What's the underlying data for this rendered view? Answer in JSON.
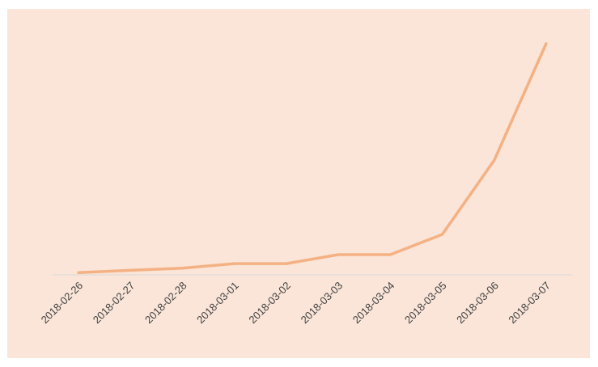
{
  "chart_data": {
    "type": "line",
    "title": "",
    "xlabel": "",
    "ylabel": "",
    "categories": [
      "2018-02-26",
      "2018-02-27",
      "2018-02-28",
      "2018-03-01",
      "2018-03-02",
      "2018-03-03",
      "2018-03-04",
      "2018-03-05",
      "2018-03-06",
      "2018-03-07"
    ],
    "series": [
      {
        "values": [
          1,
          2,
          3,
          5,
          5,
          9,
          9,
          18,
          51,
          103
        ]
      }
    ],
    "ylim": [
      0,
      103
    ],
    "grid": false,
    "legend": "none",
    "colors": {
      "background": "#fae5d8",
      "line": "#f4b183",
      "axis": "#d9d9d9",
      "text": "#404040"
    }
  }
}
